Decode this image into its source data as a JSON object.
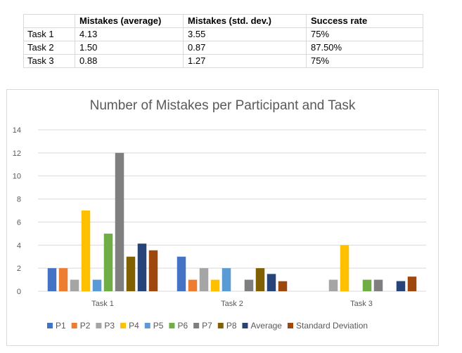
{
  "table": {
    "headers": [
      "",
      "Mistakes (average)",
      "Mistakes (std. dev.)",
      "Success rate"
    ],
    "rows": [
      [
        "Task 1",
        "4.13",
        "3.55",
        "75%"
      ],
      [
        "Task 2",
        "1.50",
        "0.87",
        "87.50%"
      ],
      [
        "Task 3",
        "0.88",
        "1.27",
        "75%"
      ]
    ]
  },
  "chart_data": {
    "type": "bar",
    "title": "Number of Mistakes per Participant and Task",
    "categories": [
      "Task 1",
      "Task 2",
      "Task 3"
    ],
    "ylim": [
      0,
      14
    ],
    "yticks": [
      "0",
      "2",
      "4",
      "6",
      "8",
      "10",
      "12",
      "14"
    ],
    "grid": true,
    "legend_position": "bottom",
    "series": [
      {
        "name": "P1",
        "color": "#4472c4",
        "values": [
          2,
          3,
          0
        ]
      },
      {
        "name": "P2",
        "color": "#ed7d31",
        "values": [
          2,
          1,
          0
        ]
      },
      {
        "name": "P3",
        "color": "#a5a5a5",
        "values": [
          1,
          2,
          1
        ]
      },
      {
        "name": "P4",
        "color": "#ffc000",
        "values": [
          7,
          1,
          4
        ]
      },
      {
        "name": "P5",
        "color": "#5b9bd5",
        "values": [
          1,
          2,
          0
        ]
      },
      {
        "name": "P6",
        "color": "#70ad47",
        "values": [
          5,
          0,
          1
        ]
      },
      {
        "name": "P7",
        "color": "#7f7f7f",
        "values": [
          12,
          1,
          1
        ]
      },
      {
        "name": "P8",
        "color": "#806000",
        "values": [
          3,
          2,
          0
        ]
      },
      {
        "name": "Average",
        "color": "#264478",
        "values": [
          4.13,
          1.5,
          0.88
        ]
      },
      {
        "name": "Standard Deviation",
        "color": "#9e480e",
        "values": [
          3.55,
          0.87,
          1.27
        ]
      }
    ]
  }
}
